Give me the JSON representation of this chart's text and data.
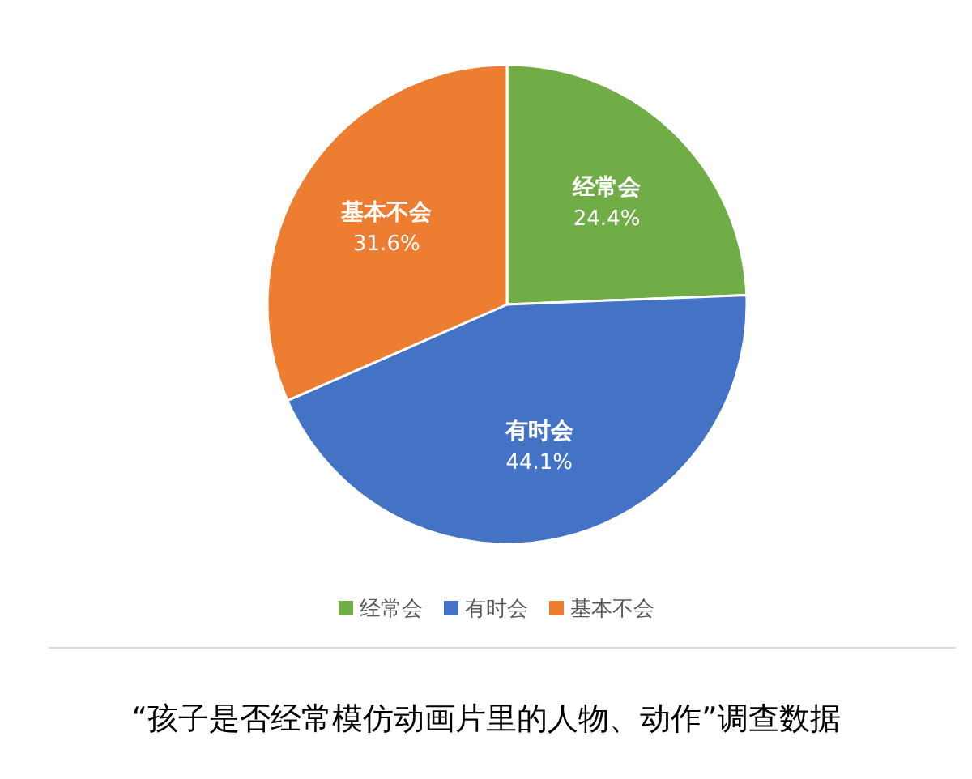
{
  "chart_data": {
    "type": "pie",
    "title": "“孩子是否经常模仿动画片里的人物、动作”调查数据",
    "categories": [
      "经常会",
      "有时会",
      "基本不会"
    ],
    "values": [
      24.4,
      44.1,
      31.6
    ],
    "colors": [
      "#70ad47",
      "#4472c4",
      "#ed7d31"
    ],
    "value_labels": [
      "24.4%",
      "44.1%",
      "31.6%"
    ],
    "legend": "bottom"
  }
}
